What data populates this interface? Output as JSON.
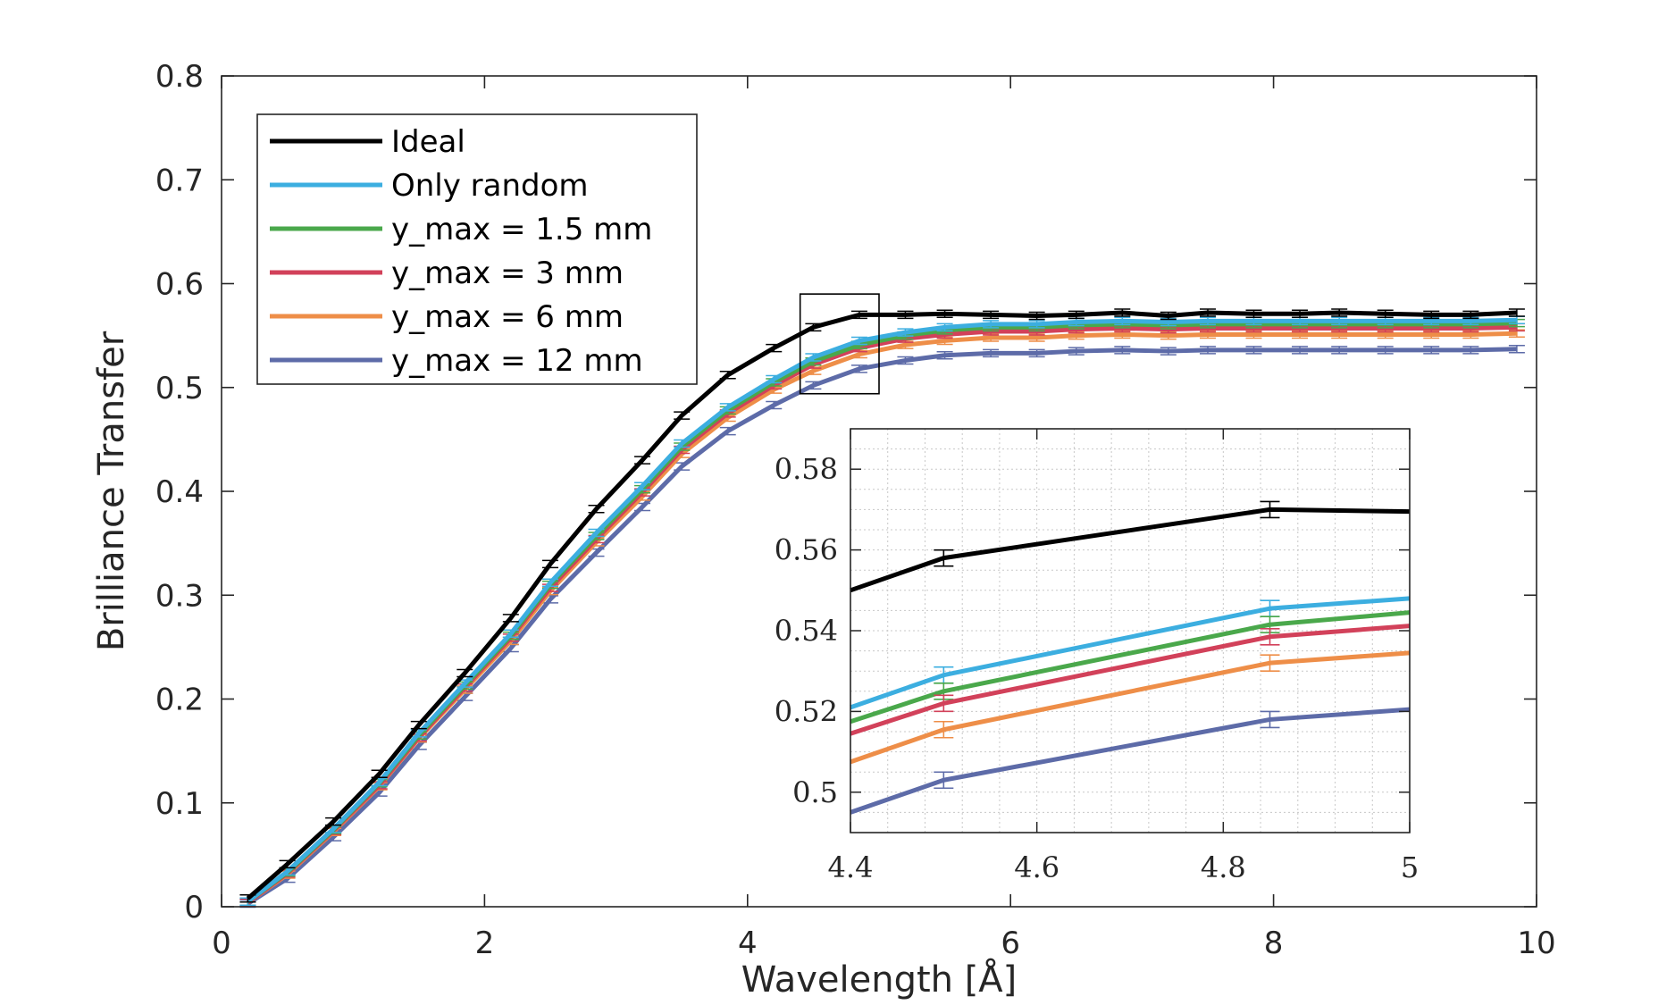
{
  "chart_data": [
    {
      "type": "line",
      "id": "main",
      "xlabel": "Wavelength [Å]",
      "ylabel": "Brilliance Transfer",
      "xlim": [
        0,
        10
      ],
      "ylim": [
        0,
        0.8
      ],
      "xticks": [
        "0",
        "2",
        "4",
        "6",
        "8",
        "10"
      ],
      "yticks": [
        "0",
        "0.1",
        "0.2",
        "0.3",
        "0.4",
        "0.5",
        "0.6",
        "0.7",
        "0.8"
      ],
      "x": [
        0.2,
        0.5,
        0.85,
        1.2,
        1.5,
        1.85,
        2.2,
        2.5,
        2.85,
        3.2,
        3.5,
        3.85,
        4.2,
        4.5,
        4.85,
        5.2,
        5.5,
        5.85,
        6.2,
        6.5,
        6.85,
        7.2,
        7.5,
        7.85,
        8.2,
        8.5,
        8.85,
        9.2,
        9.5,
        9.85
      ],
      "series": [
        {
          "name": "Ideal",
          "color": "#000000",
          "values": [
            0.008,
            0.041,
            0.082,
            0.128,
            0.175,
            0.225,
            0.278,
            0.33,
            0.383,
            0.43,
            0.473,
            0.512,
            0.538,
            0.558,
            0.57,
            0.57,
            0.571,
            0.57,
            0.569,
            0.57,
            0.572,
            0.569,
            0.572,
            0.571,
            0.571,
            0.572,
            0.571,
            0.57,
            0.57,
            0.572
          ]
        },
        {
          "name": "Only random",
          "color": "#3CAEE0",
          "values": [
            0.005,
            0.034,
            0.075,
            0.12,
            0.167,
            0.215,
            0.263,
            0.312,
            0.36,
            0.405,
            0.446,
            0.481,
            0.508,
            0.529,
            0.545,
            0.553,
            0.558,
            0.561,
            0.561,
            0.563,
            0.564,
            0.563,
            0.564,
            0.564,
            0.564,
            0.564,
            0.564,
            0.564,
            0.564,
            0.565
          ]
        },
        {
          "name": "y_max = 1.5 mm",
          "color": "#4AA84B",
          "values": [
            0.005,
            0.033,
            0.074,
            0.119,
            0.165,
            0.213,
            0.261,
            0.31,
            0.357,
            0.402,
            0.443,
            0.478,
            0.505,
            0.525,
            0.541,
            0.55,
            0.555,
            0.558,
            0.558,
            0.56,
            0.561,
            0.56,
            0.561,
            0.561,
            0.561,
            0.561,
            0.561,
            0.561,
            0.561,
            0.562
          ]
        },
        {
          "name": "y_max = 3 mm",
          "color": "#D2415A",
          "values": [
            0.004,
            0.032,
            0.073,
            0.117,
            0.163,
            0.211,
            0.259,
            0.307,
            0.354,
            0.399,
            0.44,
            0.475,
            0.502,
            0.522,
            0.538,
            0.547,
            0.551,
            0.554,
            0.554,
            0.556,
            0.557,
            0.556,
            0.557,
            0.557,
            0.557,
            0.557,
            0.557,
            0.557,
            0.557,
            0.558
          ]
        },
        {
          "name": "y_max = 6 mm",
          "color": "#EE8E48",
          "values": [
            0.004,
            0.031,
            0.072,
            0.116,
            0.162,
            0.209,
            0.256,
            0.304,
            0.351,
            0.395,
            0.436,
            0.471,
            0.498,
            0.516,
            0.532,
            0.541,
            0.545,
            0.548,
            0.548,
            0.55,
            0.551,
            0.55,
            0.551,
            0.551,
            0.551,
            0.551,
            0.551,
            0.551,
            0.551,
            0.552
          ]
        },
        {
          "name": "y_max = 12 mm",
          "color": "#5D6BA8",
          "values": [
            0.003,
            0.027,
            0.067,
            0.11,
            0.155,
            0.202,
            0.249,
            0.296,
            0.341,
            0.385,
            0.424,
            0.458,
            0.483,
            0.502,
            0.518,
            0.526,
            0.531,
            0.533,
            0.533,
            0.535,
            0.536,
            0.535,
            0.536,
            0.536,
            0.536,
            0.536,
            0.536,
            0.536,
            0.536,
            0.537
          ]
        }
      ],
      "legend": {
        "location": "top-left",
        "entries": [
          "Ideal",
          "Only random",
          "y_max = 1.5 mm",
          "y_max = 3 mm",
          "y_max = 6 mm",
          "y_max = 12 mm"
        ]
      },
      "zoom_box": {
        "xlim": [
          4.4,
          5.0
        ],
        "ylim": [
          0.494,
          0.59
        ]
      },
      "grid": false
    },
    {
      "type": "line",
      "id": "inset",
      "xlim": [
        4.4,
        5.0
      ],
      "ylim": [
        0.49,
        0.59
      ],
      "xticks": [
        "4.4",
        "4.6",
        "4.8",
        "5"
      ],
      "yticks": [
        "0.5",
        "0.52",
        "0.54",
        "0.56",
        "0.58"
      ],
      "x": [
        4.4,
        4.5,
        4.85,
        5.0
      ],
      "grid": true,
      "series": [
        {
          "name": "Ideal",
          "color": "#000000",
          "values": [
            0.55,
            0.558,
            0.57,
            0.5695
          ],
          "errorbar_x": [
            4.5,
            4.85
          ]
        },
        {
          "name": "Only random",
          "color": "#3CAEE0",
          "values": [
            0.521,
            0.529,
            0.5455,
            0.548
          ],
          "errorbar_x": [
            4.5,
            4.85
          ]
        },
        {
          "name": "y_max = 1.5 mm",
          "color": "#4AA84B",
          "values": [
            0.5175,
            0.525,
            0.5415,
            0.5445
          ],
          "errorbar_x": [
            4.5,
            4.85
          ]
        },
        {
          "name": "y_max = 3 mm",
          "color": "#D2415A",
          "values": [
            0.5145,
            0.522,
            0.5385,
            0.5412
          ],
          "errorbar_x": [
            4.5,
            4.85
          ]
        },
        {
          "name": "y_max = 6 mm",
          "color": "#EE8E48",
          "values": [
            0.5075,
            0.5155,
            0.532,
            0.5345
          ],
          "errorbar_x": [
            4.5,
            4.85
          ]
        },
        {
          "name": "y_max = 12 mm",
          "color": "#5D6BA8",
          "values": [
            0.495,
            0.503,
            0.518,
            0.5205
          ],
          "errorbar_x": [
            4.5,
            4.85
          ]
        }
      ]
    }
  ]
}
